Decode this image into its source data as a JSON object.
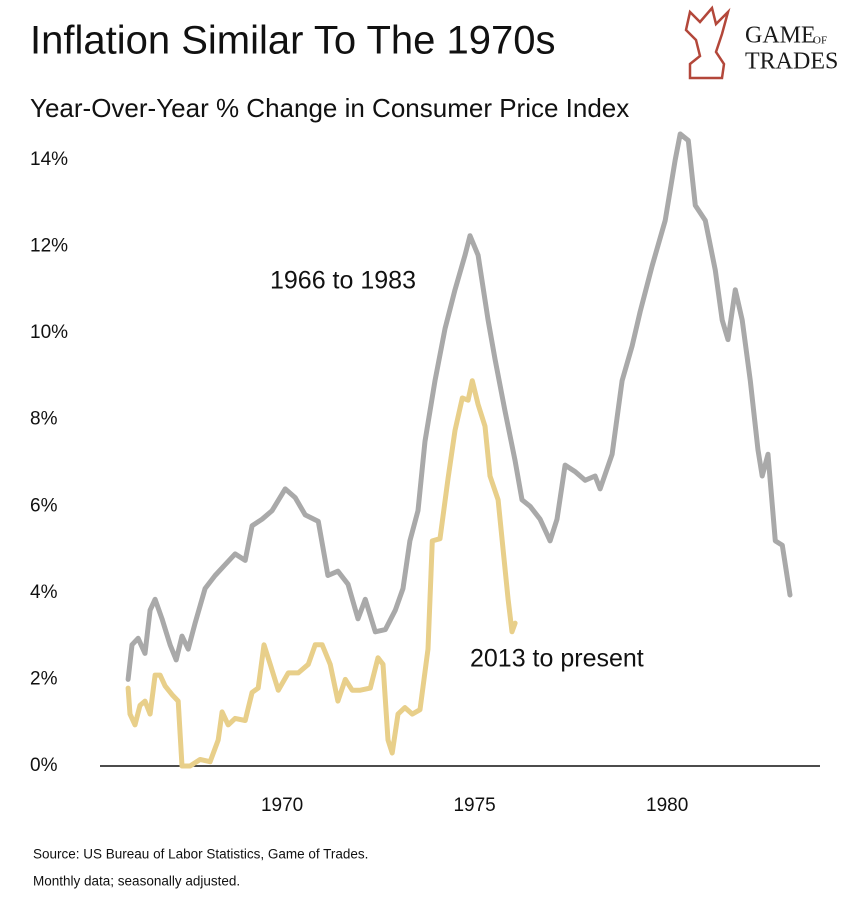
{
  "chart_data": {
    "type": "line",
    "title": "Inflation Similar To The 1970s",
    "subtitle": "Year-Over-Year % Change in Consumer Price Index",
    "logo": [
      "GAME",
      "OF",
      "TRADES"
    ],
    "annotations": [
      "1966 to 1983",
      "2013 to present"
    ],
    "source": [
      "Source: US Bureau of Labor Statistics, Game of Trades.",
      "Monthly data; seasonally adjusted."
    ],
    "xlim": [
      1965.27,
      1983.97
    ],
    "xticks": [
      1970,
      1975,
      1980
    ],
    "ylim": [
      0,
      14.7
    ],
    "yticks": [
      {
        "value": 0,
        "label": "0%"
      },
      {
        "value": 2,
        "label": "2%"
      },
      {
        "value": 4,
        "label": "4%"
      },
      {
        "value": 6,
        "label": "6%"
      },
      {
        "value": 8,
        "label": "8%"
      },
      {
        "value": 10,
        "label": "10%"
      },
      {
        "value": 12,
        "label": "12%"
      },
      {
        "value": 14,
        "label": "14%"
      }
    ],
    "grid": false,
    "series": [
      {
        "name": "1966 to 1983",
        "color": "#a9a9a9",
        "x": [
          1966.0,
          1966.1,
          1966.26,
          1966.44,
          1966.57,
          1966.7,
          1966.88,
          1967.09,
          1967.25,
          1967.4,
          1967.56,
          1967.74,
          1968.0,
          1968.26,
          1968.52,
          1968.78,
          1969.04,
          1969.22,
          1969.48,
          1969.74,
          1970.08,
          1970.34,
          1970.6,
          1970.94,
          1971.19,
          1971.45,
          1971.71,
          1971.97,
          1972.16,
          1972.42,
          1972.68,
          1972.94,
          1973.14,
          1973.32,
          1973.53,
          1973.71,
          1973.97,
          1974.23,
          1974.49,
          1974.75,
          1974.88,
          1975.09,
          1975.35,
          1975.53,
          1975.79,
          1976.05,
          1976.23,
          1976.44,
          1976.7,
          1976.96,
          1977.14,
          1977.35,
          1977.61,
          1977.87,
          1978.13,
          1978.26,
          1978.57,
          1978.83,
          1979.09,
          1979.3,
          1979.61,
          1979.95,
          1980.21,
          1980.34,
          1980.55,
          1980.73,
          1980.99,
          1981.25,
          1981.43,
          1981.58,
          1981.77,
          1981.95,
          1982.16,
          1982.36,
          1982.47,
          1982.62,
          1982.81,
          1982.99,
          1983.19
        ],
        "values": [
          2.0,
          2.8,
          2.95,
          2.6,
          3.6,
          3.85,
          3.4,
          2.8,
          2.45,
          3.0,
          2.7,
          3.3,
          4.1,
          4.4,
          4.65,
          4.9,
          4.75,
          5.55,
          5.7,
          5.9,
          6.4,
          6.2,
          5.8,
          5.65,
          4.4,
          4.5,
          4.2,
          3.4,
          3.85,
          3.1,
          3.15,
          3.6,
          4.1,
          5.2,
          5.9,
          7.5,
          8.9,
          10.1,
          11.0,
          11.8,
          12.25,
          11.8,
          10.3,
          9.4,
          8.2,
          7.05,
          6.15,
          6.0,
          5.7,
          5.2,
          5.7,
          6.95,
          6.8,
          6.6,
          6.7,
          6.4,
          7.2,
          8.9,
          9.7,
          10.5,
          11.55,
          12.6,
          14.0,
          14.6,
          14.45,
          12.95,
          12.6,
          11.45,
          10.3,
          9.85,
          11.0,
          10.3,
          8.9,
          7.3,
          6.7,
          7.2,
          5.2,
          5.1,
          3.95
        ]
      },
      {
        "name": "2013 to present",
        "color": "#e8cf8a",
        "x": [
          1966.0,
          1966.05,
          1966.18,
          1966.31,
          1966.44,
          1966.57,
          1966.7,
          1966.83,
          1966.96,
          1967.14,
          1967.3,
          1967.4,
          1967.61,
          1967.87,
          1968.13,
          1968.34,
          1968.44,
          1968.6,
          1968.78,
          1969.04,
          1969.22,
          1969.38,
          1969.53,
          1969.69,
          1969.9,
          1970.16,
          1970.42,
          1970.68,
          1970.86,
          1971.04,
          1971.25,
          1971.45,
          1971.64,
          1971.82,
          1972.03,
          1972.29,
          1972.49,
          1972.62,
          1972.75,
          1972.86,
          1973.01,
          1973.19,
          1973.38,
          1973.58,
          1973.79,
          1973.9,
          1974.1,
          1974.31,
          1974.49,
          1974.68,
          1974.83,
          1974.94,
          1975.09,
          1975.27,
          1975.4,
          1975.61,
          1975.74,
          1975.87,
          1975.97,
          1976.05
        ],
        "values": [
          1.8,
          1.2,
          0.95,
          1.4,
          1.5,
          1.2,
          2.1,
          2.1,
          1.85,
          1.65,
          1.5,
          0.0,
          0.0,
          0.15,
          0.1,
          0.6,
          1.25,
          0.95,
          1.1,
          1.05,
          1.7,
          1.8,
          2.8,
          2.35,
          1.75,
          2.15,
          2.15,
          2.35,
          2.8,
          2.8,
          2.35,
          1.5,
          2.0,
          1.75,
          1.75,
          1.8,
          2.5,
          2.35,
          0.6,
          0.3,
          1.2,
          1.35,
          1.2,
          1.3,
          2.7,
          5.2,
          5.25,
          6.65,
          7.75,
          8.5,
          8.45,
          8.9,
          8.35,
          7.85,
          6.7,
          6.15,
          5.0,
          3.85,
          3.1,
          3.3
        ]
      }
    ]
  }
}
